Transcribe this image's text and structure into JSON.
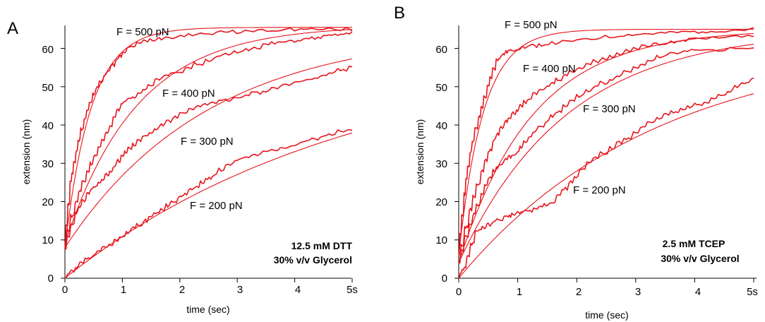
{
  "colors": {
    "curve": "#e8141c",
    "axis": "#000000"
  },
  "chart_data": [
    {
      "type": "line",
      "panel": "A",
      "xlabel": "time (sec)",
      "ylabel": "extension (nm)",
      "xlim": [
        0,
        5
      ],
      "ylim": [
        0,
        66
      ],
      "x_ticks": [
        "0",
        "1",
        "2",
        "3",
        "4",
        "5s"
      ],
      "y_ticks": [
        "0",
        "10",
        "20",
        "30",
        "40",
        "50",
        "60"
      ],
      "annotation": [
        "12.5 mM DTT",
        "30% v/v Glycerol"
      ],
      "series": [
        {
          "name": "F = 500 pN",
          "fit_plateau": 65.5,
          "fit_rate": 2.2,
          "fit_offset": 8,
          "trace": [
            [
              0,
              8
            ],
            [
              0.1,
              25
            ],
            [
              0.2,
              33
            ],
            [
              0.35,
              42
            ],
            [
              0.5,
              48
            ],
            [
              0.7,
              53
            ],
            [
              0.9,
              57
            ],
            [
              1.1,
              60
            ],
            [
              1.4,
              62
            ],
            [
              1.8,
              63
            ],
            [
              2.5,
              64
            ],
            [
              3.2,
              64.5
            ],
            [
              4,
              65
            ],
            [
              5,
              65
            ]
          ]
        },
        {
          "name": "F = 400 pN",
          "fit_plateau": 66,
          "fit_rate": 0.8,
          "fit_offset": 9,
          "trace": [
            [
              0,
              9
            ],
            [
              0.2,
              20
            ],
            [
              0.4,
              28
            ],
            [
              0.6,
              34
            ],
            [
              0.8,
              40
            ],
            [
              1.0,
              46
            ],
            [
              1.3,
              48
            ],
            [
              1.6,
              52
            ],
            [
              2.0,
              54
            ],
            [
              2.5,
              57
            ],
            [
              3.0,
              59
            ],
            [
              3.5,
              61
            ],
            [
              4.0,
              62
            ],
            [
              4.5,
              63
            ],
            [
              5,
              64
            ]
          ]
        },
        {
          "name": "F = 300 pN",
          "fit_plateau": 65,
          "fit_rate": 0.4,
          "fit_offset": 8,
          "trace": [
            [
              0,
              8
            ],
            [
              0.2,
              17
            ],
            [
              0.4,
              22
            ],
            [
              0.6,
              25
            ],
            [
              0.8,
              28
            ],
            [
              1.0,
              32
            ],
            [
              1.2,
              35
            ],
            [
              1.5,
              38
            ],
            [
              1.8,
              41
            ],
            [
              2.2,
              44
            ],
            [
              2.6,
              46
            ],
            [
              3.0,
              47
            ],
            [
              3.5,
              49
            ],
            [
              4.0,
              51
            ],
            [
              4.5,
              53
            ],
            [
              5,
              55
            ]
          ]
        },
        {
          "name": "F = 200 pN",
          "fit_plateau": 60,
          "fit_rate": 0.2,
          "fit_offset": 0,
          "trace": [
            [
              0,
              0
            ],
            [
              0.2,
              3
            ],
            [
              0.5,
              6
            ],
            [
              0.8,
              9
            ],
            [
              1.1,
              12
            ],
            [
              1.4,
              15
            ],
            [
              1.7,
              18
            ],
            [
              2.0,
              21
            ],
            [
              2.3,
              24
            ],
            [
              2.6,
              27
            ],
            [
              3.0,
              31
            ],
            [
              3.5,
              33
            ],
            [
              4.0,
              35
            ],
            [
              4.5,
              37
            ],
            [
              5,
              39
            ]
          ]
        }
      ],
      "curve_labels": [
        "F = 500 pN",
        "F = 400 pN",
        "F = 300 pN",
        "F = 200 pN"
      ]
    },
    {
      "type": "line",
      "panel": "B",
      "xlabel": "time (sec)",
      "ylabel": "extension (nm)",
      "xlim": [
        0,
        5
      ],
      "ylim": [
        0,
        66
      ],
      "x_ticks": [
        "0",
        "1",
        "2",
        "3",
        "4",
        "5s"
      ],
      "y_ticks": [
        "0",
        "10",
        "20",
        "30",
        "40",
        "50",
        "60"
      ],
      "annotation": [
        "2.5 mM TCEP",
        "30% v/v Glycerol"
      ],
      "series": [
        {
          "name": "F = 500 pN",
          "fit_plateau": 65,
          "fit_rate": 2.4,
          "fit_offset": 6,
          "trace": [
            [
              0,
              6
            ],
            [
              0.1,
              22
            ],
            [
              0.2,
              33
            ],
            [
              0.35,
              42
            ],
            [
              0.5,
              50
            ],
            [
              0.65,
              57
            ],
            [
              0.8,
              59
            ],
            [
              1.0,
              60
            ],
            [
              1.4,
              61
            ],
            [
              2.0,
              62
            ],
            [
              2.8,
              63.5
            ],
            [
              3.5,
              64
            ],
            [
              4.2,
              64.5
            ],
            [
              5,
              65
            ]
          ]
        },
        {
          "name": "F = 400 pN",
          "fit_plateau": 65,
          "fit_rate": 0.8,
          "fit_offset": 4,
          "trace": [
            [
              0,
              4
            ],
            [
              0.2,
              18
            ],
            [
              0.4,
              28
            ],
            [
              0.6,
              36
            ],
            [
              0.8,
              41
            ],
            [
              1.0,
              44
            ],
            [
              1.2,
              47
            ],
            [
              1.5,
              50
            ],
            [
              1.8,
              53
            ],
            [
              2.2,
              56
            ],
            [
              2.6,
              58
            ],
            [
              3.0,
              60
            ],
            [
              3.5,
              61.5
            ],
            [
              4.0,
              62.5
            ],
            [
              5,
              63.5
            ]
          ]
        },
        {
          "name": "F = 300 pN",
          "fit_plateau": 65,
          "fit_rate": 0.55,
          "fit_offset": 4,
          "trace": [
            [
              0,
              4
            ],
            [
              0.2,
              14
            ],
            [
              0.4,
              22
            ],
            [
              0.6,
              28
            ],
            [
              0.8,
              31
            ],
            [
              1.0,
              33
            ],
            [
              1.2,
              37
            ],
            [
              1.5,
              41
            ],
            [
              1.8,
              45
            ],
            [
              2.2,
              49
            ],
            [
              2.6,
              52
            ],
            [
              3.0,
              55
            ],
            [
              3.4,
              58
            ],
            [
              4.0,
              59.5
            ],
            [
              5,
              60
            ]
          ]
        },
        {
          "name": "F = 200 pN",
          "fit_plateau": 62,
          "fit_rate": 0.3,
          "fit_offset": 0,
          "trace": [
            [
              0,
              0
            ],
            [
              0.1,
              3
            ],
            [
              0.3,
              12
            ],
            [
              0.5,
              14
            ],
            [
              0.8,
              16
            ],
            [
              1.0,
              17
            ],
            [
              1.3,
              18
            ],
            [
              1.6,
              20
            ],
            [
              1.9,
              25
            ],
            [
              2.2,
              30
            ],
            [
              2.6,
              34
            ],
            [
              3.0,
              38
            ],
            [
              3.4,
              42
            ],
            [
              3.8,
              44
            ],
            [
              4.2,
              46
            ],
            [
              4.6,
              49
            ],
            [
              5,
              52
            ]
          ]
        }
      ],
      "curve_labels": [
        "F = 500 pN",
        "F = 400 pN",
        "F = 300 pN",
        "F = 200 pN"
      ]
    }
  ]
}
